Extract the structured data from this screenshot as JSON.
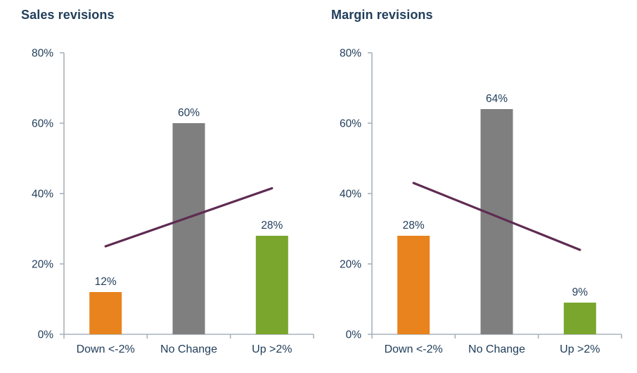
{
  "colors": {
    "title_text": "#213e5b",
    "label_text": "#213e5b",
    "axis_line": "#a7b2bd",
    "bar_down": "#e8831e",
    "bar_no_change": "#7f7f7f",
    "bar_up": "#7aa62e",
    "trend_line": "#5e2b52"
  },
  "chart_data": [
    {
      "type": "bar",
      "title": "Sales revisions",
      "categories": [
        "Down <-2%",
        "No Change",
        "Up >2%"
      ],
      "values": [
        12,
        60,
        28
      ],
      "data_labels": [
        "12%",
        "60%",
        "28%"
      ],
      "bar_colors": [
        "#e8831e",
        "#7f7f7f",
        "#7aa62e"
      ],
      "ylim": [
        0,
        80
      ],
      "ytick_values": [
        0,
        20,
        40,
        60,
        80
      ],
      "ytick_labels": [
        "0%",
        "20%",
        "40%",
        "60%",
        "80%"
      ],
      "grid": false,
      "legend": "none",
      "trend_line": {
        "start_value": 25,
        "end_value": 41.5,
        "color": "#5e2b52"
      }
    },
    {
      "type": "bar",
      "title": "Margin revisions",
      "categories": [
        "Down <-2%",
        "No Change",
        "Up >2%"
      ],
      "values": [
        28,
        64,
        9
      ],
      "data_labels": [
        "28%",
        "64%",
        "9%"
      ],
      "bar_colors": [
        "#e8831e",
        "#7f7f7f",
        "#7aa62e"
      ],
      "ylim": [
        0,
        80
      ],
      "ytick_values": [
        0,
        20,
        40,
        60,
        80
      ],
      "ytick_labels": [
        "0%",
        "20%",
        "40%",
        "60%",
        "80%"
      ],
      "grid": false,
      "legend": "none",
      "trend_line": {
        "start_value": 43,
        "end_value": 24,
        "color": "#5e2b52"
      }
    }
  ]
}
